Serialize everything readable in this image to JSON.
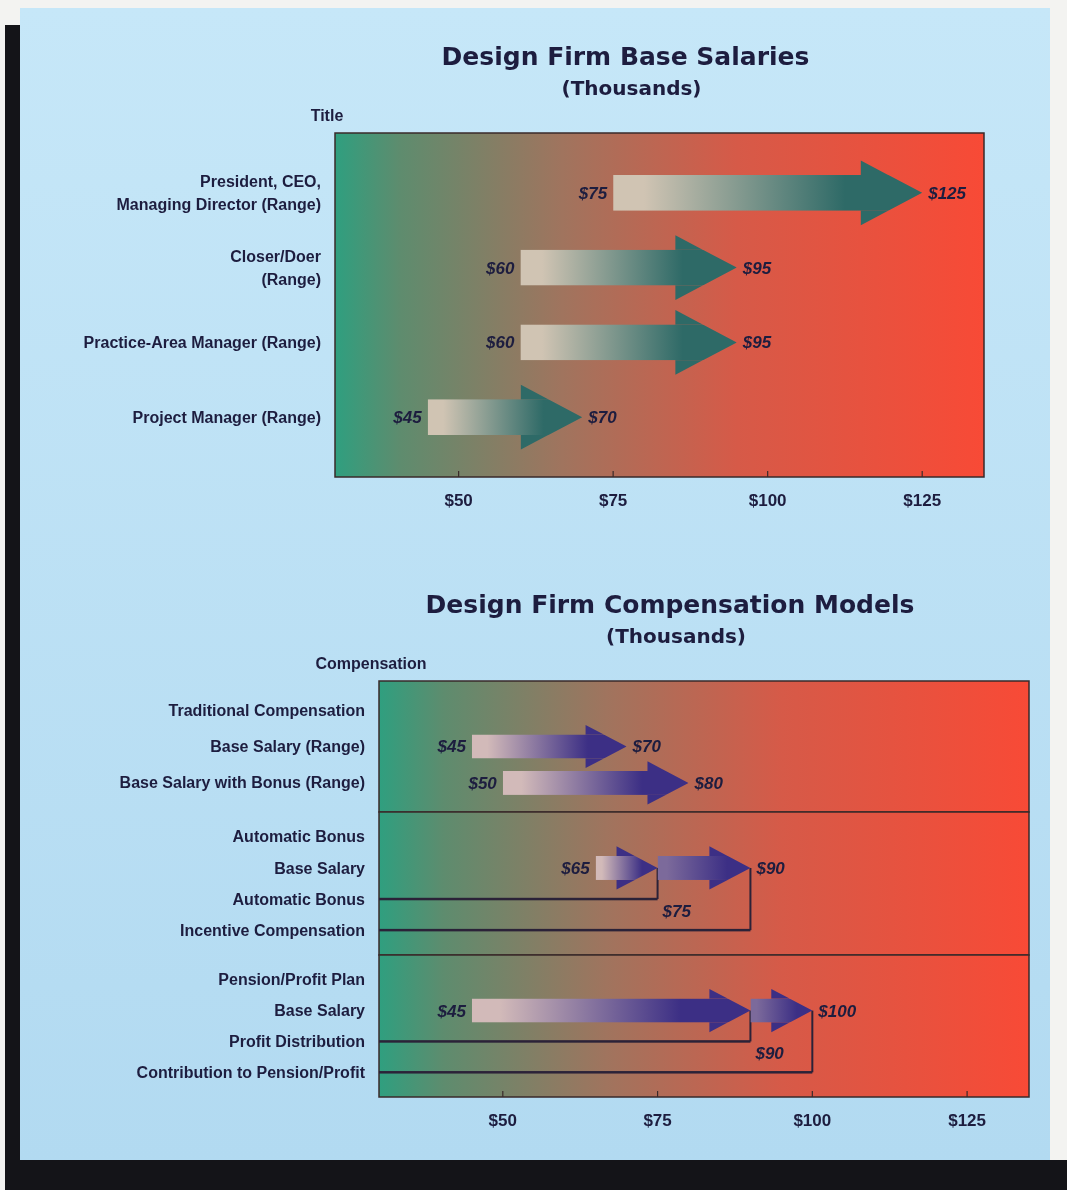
{
  "chart_data": [
    {
      "type": "bar",
      "title": "Design Firm Base Salaries",
      "subtitle": "(Thousands)",
      "ylabel": "Title",
      "orientation": "horizontal",
      "categories": [
        "President, CEO,\nManaging Director (Range)",
        "Closer/Doer\n(Range)",
        "Practice-Area Manager (Range)",
        "Project Manager (Range)"
      ],
      "series": [
        {
          "color": "#2e6a67",
          "base": [
            75,
            60,
            60,
            45
          ],
          "values": [
            50,
            35,
            35,
            25
          ],
          "value_labels": [
            "$125",
            "$95",
            "$95",
            "$70"
          ]
        }
      ],
      "annotations": [
        {
          "text": "$75",
          "x": 75,
          "y": "President, CEO,\nManaging Director (Range)"
        },
        {
          "text": "$60",
          "x": 60,
          "y": "Closer/Doer\n(Range)"
        },
        {
          "text": "$60",
          "x": 60,
          "y": "Practice-Area Manager (Range)"
        },
        {
          "text": "$45",
          "x": 45,
          "y": "Project Manager (Range)"
        }
      ],
      "xlim": [
        30,
        135
      ],
      "xticks": [
        {
          "value": 50,
          "label": "$50"
        },
        {
          "value": 75,
          "label": "$75"
        },
        {
          "value": 100,
          "label": "$100"
        },
        {
          "value": 125,
          "label": "$125"
        }
      ]
    },
    {
      "type": "bar",
      "title": "Design Firm Compensation Models",
      "subtitle": "(Thousands)",
      "ylabel": "Compensation",
      "orientation": "horizontal",
      "categories": [
        "Traditional Compensation",
        "Base Salary (Range)",
        "Base Salary with Bonus (Range)"
      ],
      "series": [
        {
          "color": "#3c2f85",
          "base": [
            null,
            45,
            50
          ],
          "values": [
            null,
            25,
            30
          ],
          "value_labels": [
            null,
            "$70",
            "$80"
          ]
        }
      ],
      "annotations": [
        {
          "text": "$45",
          "x": 45,
          "y": "Base Salary (Range)"
        },
        {
          "text": "$50",
          "x": 50,
          "y": "Base Salary with Bonus (Range)"
        }
      ],
      "xlim": [
        30,
        135
      ],
      "tick_labels": "y"
    },
    {
      "type": "bar",
      "orientation": "horizontal",
      "categories": [
        "Automatic Bonus",
        "Base Salary",
        "Automatic Bonus",
        "Incentive Compensation"
      ],
      "series": [
        {
          "color": "#3c2f85",
          "base": [
            null,
            65,
            null,
            null
          ],
          "values": [
            null,
            10,
            null,
            null
          ]
        },
        {
          "color": "#3c2f85",
          "base": [
            null,
            75,
            null,
            null
          ],
          "values": [
            null,
            15,
            null,
            null
          ],
          "value_labels": [
            null,
            "$90",
            null,
            null
          ]
        },
        {
          "color": "#2b2238",
          "line_style": "solid",
          "base": [
            null,
            null,
            30,
            30
          ],
          "values": [
            null,
            null,
            45,
            60
          ],
          "value_labels": [
            null,
            null,
            "$75",
            null
          ]
        }
      ],
      "annotations": [
        {
          "text": "$65",
          "x": 65,
          "y": "Base Salary"
        }
      ],
      "xlim": [
        30,
        135
      ],
      "tick_labels": "y"
    },
    {
      "type": "bar",
      "orientation": "horizontal",
      "categories": [
        "Pension/Profit Plan",
        "Base Salary",
        "Profit Distribution",
        "Contribution to Pension/Profit"
      ],
      "series": [
        {
          "color": "#3c2f85",
          "base": [
            null,
            45,
            null,
            null
          ],
          "values": [
            null,
            45,
            null,
            null
          ]
        },
        {
          "color": "#3c2f85",
          "base": [
            null,
            90,
            null,
            null
          ],
          "values": [
            null,
            10,
            null,
            null
          ],
          "value_labels": [
            null,
            "$100",
            null,
            null
          ]
        },
        {
          "color": "#2b2238",
          "line_style": "solid",
          "base": [
            null,
            null,
            30,
            30
          ],
          "values": [
            null,
            null,
            60,
            70
          ],
          "value_labels": [
            null,
            null,
            "$90",
            null
          ]
        }
      ],
      "annotations": [
        {
          "text": "$45",
          "x": 45,
          "y": "Base Salary"
        }
      ],
      "xlim": [
        30,
        135
      ],
      "xticks": [
        {
          "value": 50,
          "label": "$50"
        },
        {
          "value": 75,
          "label": "$75"
        },
        {
          "value": 100,
          "label": "$100"
        },
        {
          "value": 125,
          "label": "$125"
        }
      ]
    }
  ]
}
